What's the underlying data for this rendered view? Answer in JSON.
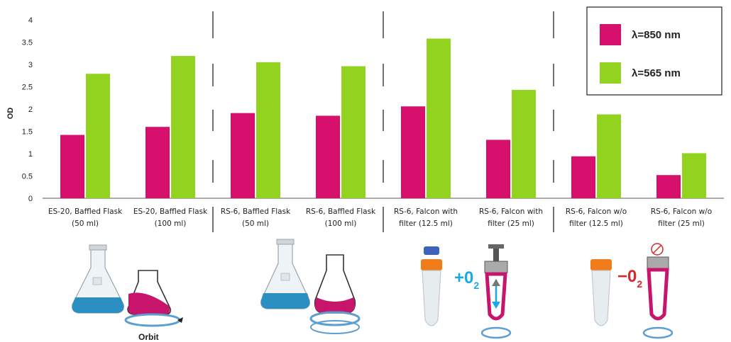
{
  "chart_data": {
    "type": "bar",
    "ylabel": "OD",
    "xlabel": "",
    "ylim": [
      0,
      4
    ],
    "yticks": [
      "0",
      "0.5",
      "1",
      "1.5",
      "2",
      "2.5",
      "3",
      "3.5",
      "4"
    ],
    "categories": [
      [
        "ES-20, Baffled Flask",
        "(50 ml)"
      ],
      [
        "ES-20, Baffled Flask",
        "(100 ml)"
      ],
      [
        "RS-6, Baffled Flask",
        "(50 ml)"
      ],
      [
        "RS-6, Baffled Flask",
        "(100 ml)"
      ],
      [
        "RS-6, Falcon with",
        "filter (12.5 ml)"
      ],
      [
        "RS-6, Falcon with",
        "filter (25 ml)"
      ],
      [
        "RS-6, Falcon w/o",
        "filter (12.5 ml)"
      ],
      [
        "RS-6, Falcon w/o",
        "filter (25 ml)"
      ]
    ],
    "series": [
      {
        "name": "λ=850 nm",
        "color": "#d6106c",
        "values": [
          1.42,
          1.6,
          1.91,
          1.85,
          2.06,
          1.31,
          0.94,
          0.52
        ]
      },
      {
        "name": "λ=565 nm",
        "color": "#92d320",
        "values": [
          2.79,
          3.19,
          3.05,
          2.96,
          3.58,
          2.43,
          1.88,
          1.01
        ]
      }
    ],
    "legend_position": "top-right",
    "grid": false,
    "group_separators": "dashed vertical lines between groups of two categories"
  },
  "illustrations": {
    "orbit_label": "Orbit",
    "plus_o2": "+0",
    "minus_o2": "−0",
    "o2_subscript": "2"
  },
  "colors": {
    "magenta": "#d6106c",
    "green": "#92d320",
    "cyan": "#19a9e6",
    "red": "#d42a2a"
  }
}
